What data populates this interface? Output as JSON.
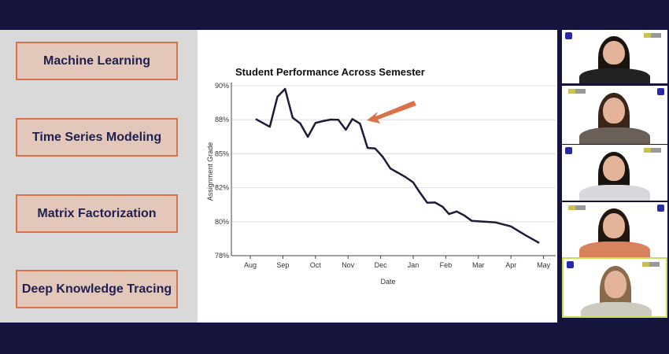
{
  "topics": [
    "Machine Learning",
    "Time Series Modeling",
    "Matrix Factorization",
    "Deep Knowledge Tracing"
  ],
  "colors": {
    "background": "#15143d",
    "panel": "#d9d9d9",
    "topic_fill": "#e3c7bb",
    "topic_border": "#d9714a",
    "topic_text": "#1f2050",
    "line": "#1c1b3a",
    "arrow": "#d9714a",
    "active_speaker": "#c9e05a"
  },
  "chart_data": {
    "type": "line",
    "title": "Student Performance Across Semester",
    "xlabel": "Date",
    "ylabel": "Assignment Grade",
    "x_ticks": [
      "Aug",
      "Sep",
      "Oct",
      "Nov",
      "Dec",
      "Jan",
      "Feb",
      "Mar",
      "Apr",
      "May"
    ],
    "y_ticks": [
      {
        "value": 90,
        "label": "90%"
      },
      {
        "value": 87.5,
        "label": "88%"
      },
      {
        "value": 85,
        "label": "85%"
      },
      {
        "value": 82.5,
        "label": "82%"
      },
      {
        "value": 80,
        "label": "80%"
      },
      {
        "value": 77.5,
        "label": "78%"
      }
    ],
    "ylim": [
      77.5,
      90
    ],
    "grid": "horizontal",
    "annotation": "arrow pointing at mid-November drop",
    "x": [
      "Aug 6",
      "Aug 19",
      "Aug 26",
      "Sep 3",
      "Sep 10",
      "Sep 17",
      "Sep 24",
      "Oct 1",
      "Oct 8",
      "Oct 15",
      "Oct 22",
      "Oct 29",
      "Nov 5",
      "Nov 12",
      "Nov 19",
      "Nov 26",
      "Dec 3",
      "Dec 10",
      "Dec 17",
      "Dec 24",
      "Dec 31",
      "Jan 7",
      "Jan 14",
      "Jan 21",
      "Jan 28",
      "Feb 4",
      "Feb 11",
      "Feb 18",
      "Feb 25",
      "Mar 17",
      "Apr 1",
      "Apr 14",
      "Apr 27"
    ],
    "y": [
      87.55,
      86.98,
      89.19,
      89.77,
      87.65,
      87.23,
      86.24,
      87.26,
      87.4,
      87.51,
      87.5,
      86.76,
      87.55,
      87.21,
      85.43,
      85.38,
      84.76,
      83.91,
      83.6,
      83.28,
      82.89,
      82.16,
      81.39,
      81.41,
      81.1,
      80.56,
      80.75,
      80.46,
      80.06,
      79.94,
      79.65,
      79.02,
      78.44
    ]
  },
  "participants": [
    {
      "hair": "#1a1410",
      "shirt": "#222"
    },
    {
      "hair": "#3a2618",
      "shirt": "#6a6058"
    },
    {
      "hair": "#1a1410",
      "shirt": "#d8d8dc"
    },
    {
      "hair": "#22160e",
      "shirt": "#d9825e"
    },
    {
      "hair": "#8a6a4a",
      "shirt": "#cfcac0"
    }
  ]
}
